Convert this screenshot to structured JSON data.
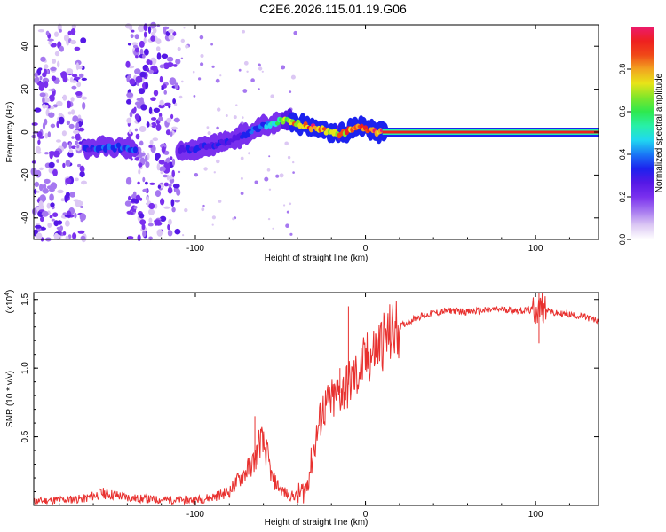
{
  "title": "C2E6.2026.115.01.19.G06",
  "colors": {
    "line": "#e8312f",
    "axis": "#000000",
    "background": "#ffffff",
    "colormap": [
      "#ffffff",
      "#dcc8f4",
      "#a678f0",
      "#7a30ee",
      "#5518e6",
      "#1c22ee",
      "#1a78f6",
      "#20d8f0",
      "#28f0a8",
      "#2ee84e",
      "#80e62a",
      "#e8e418",
      "#f2a420",
      "#f04818",
      "#ee2020",
      "#ec1a6e"
    ]
  },
  "chart_data": [
    {
      "type": "heatmap",
      "title": "C2E6.2026.115.01.19.G06",
      "xlabel": "Height of straight line (km)",
      "ylabel": "Frequency (Hz)",
      "xlim": [
        -195,
        137
      ],
      "ylim": [
        -50,
        50
      ],
      "xticks": [
        -100,
        0,
        100
      ],
      "xticklabels": [
        "-100",
        "0",
        "100"
      ],
      "yticks": [
        -40,
        -20,
        0,
        20,
        40
      ],
      "yticklabels": [
        "-40",
        "-20",
        "0",
        "20",
        "40"
      ],
      "colorbar": {
        "label": "Normalized spectral amplitude",
        "range": [
          0,
          1
        ],
        "ticks": [
          0.0,
          0.2,
          0.4,
          0.6,
          0.8
        ],
        "ticklabels": [
          "0.0",
          "0.2",
          "0.4",
          "0.6",
          "0.8"
        ]
      },
      "ridge": {
        "x": [
          -165,
          -155,
          -145,
          -135,
          -110,
          -100,
          -90,
          -80,
          -70,
          -60,
          -50,
          -45,
          -40,
          -35,
          -30,
          -25,
          -20,
          -15,
          -10,
          -5,
          0,
          5,
          10,
          137
        ],
        "freq": [
          -8,
          -7,
          -7,
          -8,
          -8,
          -8,
          -6,
          -4,
          -1,
          3,
          5,
          6,
          4,
          3,
          2,
          1,
          0,
          -1,
          1,
          2,
          2,
          0,
          0,
          0
        ],
        "amplitude": [
          0.35,
          0.4,
          0.4,
          0.35,
          0.3,
          0.35,
          0.3,
          0.3,
          0.35,
          0.45,
          0.6,
          0.85,
          0.9,
          0.9,
          0.95,
          0.9,
          0.9,
          0.85,
          0.9,
          0.9,
          0.95,
          1.0,
          1.0,
          1.0
        ]
      },
      "noise_bands": [
        [
          -195,
          -165
        ],
        [
          -140,
          -110
        ]
      ]
    },
    {
      "type": "line",
      "xlabel": "Height of straight line (km)",
      "ylabel": "SNR (10 * v/v)",
      "scale_label": "(x10",
      "scale_exponent": "4",
      "scale_suffix": ")",
      "xlim": [
        -195,
        137
      ],
      "ylim": [
        0,
        1.55
      ],
      "xticks": [
        -100,
        0,
        100
      ],
      "xticklabels": [
        "-100",
        "0",
        "100"
      ],
      "yticks": [
        0.5,
        1.0,
        1.5
      ],
      "yticklabels": [
        "0.5",
        "1.0",
        "1.5"
      ],
      "series": [
        {
          "name": "SNR",
          "x": [
            -195,
            -180,
            -165,
            -155,
            -145,
            -135,
            -120,
            -100,
            -90,
            -80,
            -75,
            -70,
            -65,
            -62,
            -58,
            -55,
            -50,
            -45,
            -40,
            -35,
            -32,
            -28,
            -25,
            -20,
            -15,
            -10,
            -5,
            0,
            5,
            10,
            20,
            30,
            40,
            50,
            60,
            70,
            80,
            90,
            100,
            105,
            110,
            120,
            130,
            137
          ],
          "values": [
            0.03,
            0.04,
            0.05,
            0.09,
            0.07,
            0.05,
            0.04,
            0.04,
            0.06,
            0.1,
            0.18,
            0.25,
            0.33,
            0.48,
            0.38,
            0.2,
            0.12,
            0.07,
            0.07,
            0.12,
            0.3,
            0.55,
            0.7,
            0.75,
            0.82,
            0.88,
            0.95,
            1.05,
            1.12,
            1.2,
            1.3,
            1.37,
            1.4,
            1.42,
            1.41,
            1.42,
            1.43,
            1.42,
            1.42,
            1.45,
            1.4,
            1.39,
            1.37,
            1.34
          ],
          "spikes": [
            [
              -10,
              1.45
            ],
            [
              -15,
              1.0
            ],
            [
              -65,
              0.65
            ],
            [
              102,
              1.55
            ],
            [
              102,
              1.18
            ]
          ],
          "color": "#e8312f"
        }
      ]
    }
  ]
}
